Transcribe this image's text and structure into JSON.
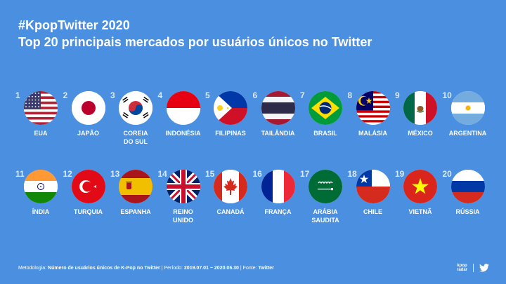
{
  "header": {
    "hashtag": "#KpopTwitter 2020",
    "title": "Top 20 principais mercados por usuários únicos no Twitter"
  },
  "markets": [
    {
      "rank": "1",
      "label": [
        "EUA"
      ],
      "flag": "usa-flag-icon"
    },
    {
      "rank": "2",
      "label": [
        "JAPÃO"
      ],
      "flag": "japan-flag-icon"
    },
    {
      "rank": "3",
      "label": [
        "COREIA",
        "DO SUL"
      ],
      "flag": "south-korea-flag-icon"
    },
    {
      "rank": "4",
      "label": [
        "INDONÉSIA"
      ],
      "flag": "indonesia-flag-icon"
    },
    {
      "rank": "5",
      "label": [
        "FILIPINAS"
      ],
      "flag": "philippines-flag-icon"
    },
    {
      "rank": "6",
      "label": [
        "TAILÂNDIA"
      ],
      "flag": "thailand-flag-icon"
    },
    {
      "rank": "7",
      "label": [
        "BRASIL"
      ],
      "flag": "brazil-flag-icon"
    },
    {
      "rank": "8",
      "label": [
        "MALÁSIA"
      ],
      "flag": "malaysia-flag-icon"
    },
    {
      "rank": "9",
      "label": [
        "MÉXICO"
      ],
      "flag": "mexico-flag-icon"
    },
    {
      "rank": "10",
      "label": [
        "ARGENTINA"
      ],
      "flag": "argentina-flag-icon"
    },
    {
      "rank": "11",
      "label": [
        "ÍNDIA"
      ],
      "flag": "india-flag-icon"
    },
    {
      "rank": "12",
      "label": [
        "TURQUIA"
      ],
      "flag": "turkey-flag-icon"
    },
    {
      "rank": "13",
      "label": [
        "ESPANHA"
      ],
      "flag": "spain-flag-icon"
    },
    {
      "rank": "14",
      "label": [
        "REINO",
        "UNIDO"
      ],
      "flag": "uk-flag-icon"
    },
    {
      "rank": "15",
      "label": [
        "CANADÁ"
      ],
      "flag": "canada-flag-icon"
    },
    {
      "rank": "16",
      "label": [
        "FRANÇA"
      ],
      "flag": "france-flag-icon"
    },
    {
      "rank": "17",
      "label": [
        "ARÁBIA",
        "SAUDITA"
      ],
      "flag": "saudi-arabia-flag-icon"
    },
    {
      "rank": "18",
      "label": [
        "CHILE"
      ],
      "flag": "chile-flag-icon"
    },
    {
      "rank": "19",
      "label": [
        "VIETNÃ"
      ],
      "flag": "vietnam-flag-icon"
    },
    {
      "rank": "20",
      "label": [
        "RÚSSIA"
      ],
      "flag": "russia-flag-icon"
    }
  ],
  "footer": {
    "methodology_label": "Metodologia:",
    "methodology_value": "Número de usuários únicos de K-Pop no Twitter",
    "period_label": "| Período:",
    "period_value": "2019.07.01 ~ 2020.06.30",
    "source_label": "| Fonte:",
    "source_value": "Twitter"
  },
  "brand": {
    "logo_line1": "kpop",
    "logo_line2": "radar",
    "twitter_icon": "twitter-bird-icon"
  },
  "colors": {
    "background": "#4a8fe0",
    "text": "#ffffff"
  }
}
